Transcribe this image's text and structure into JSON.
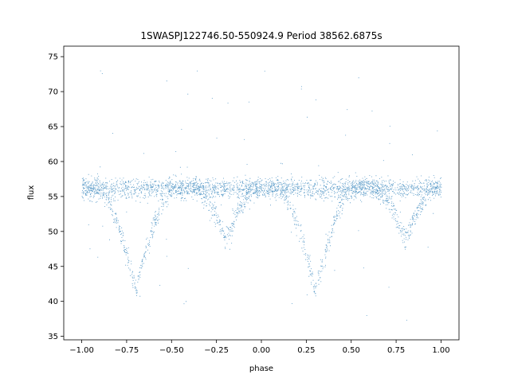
{
  "chart_data": {
    "type": "scatter",
    "title": "1SWASPJ122746.50-550924.9 Period 38562.6875s",
    "xlabel": "phase",
    "ylabel": "flux",
    "xlim": [
      -1.1,
      1.1
    ],
    "ylim": [
      34.5,
      76.5
    ],
    "xticks": [
      -1.0,
      -0.75,
      -0.5,
      -0.25,
      0.0,
      0.25,
      0.5,
      0.75,
      1.0
    ],
    "xtick_labels": [
      "−1.00",
      "−0.75",
      "−0.50",
      "−0.25",
      "0.00",
      "0.25",
      "0.50",
      "0.75",
      "1.00"
    ],
    "yticks": [
      35,
      40,
      45,
      50,
      55,
      60,
      65,
      70,
      75
    ],
    "ytick_labels": [
      "35",
      "40",
      "45",
      "50",
      "55",
      "60",
      "65",
      "70",
      "75"
    ],
    "grid": false,
    "marker_color": "#1f77b4",
    "baseline_flux": 56.2,
    "primary_minimum": {
      "phase": [
        -0.7,
        0.3
      ],
      "flux": 41.5,
      "half_width": 0.21
    },
    "secondary_minimum": {
      "phase": [
        -0.2,
        0.8
      ],
      "flux": 48.8,
      "half_width": 0.17
    },
    "point_count": 9000
  }
}
